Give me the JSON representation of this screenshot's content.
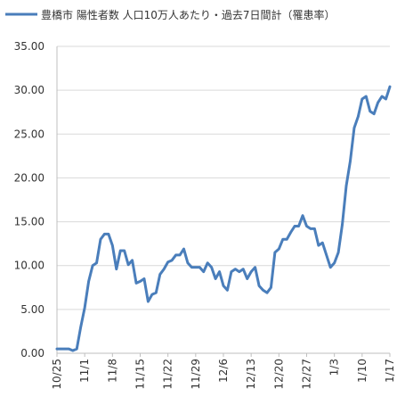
{
  "chart_data": {
    "type": "line",
    "series": [
      {
        "name": "豊橋市 陽性者数 人口10万人あたり・過去7日間計（罹患率）",
        "color": "#4a7ebb",
        "x": [
          "10/25",
          "10/26",
          "10/27",
          "10/28",
          "10/29",
          "10/30",
          "10/31",
          "11/1",
          "11/2",
          "11/3",
          "11/4",
          "11/5",
          "11/6",
          "11/7",
          "11/8",
          "11/9",
          "11/10",
          "11/11",
          "11/12",
          "11/13",
          "11/14",
          "11/15",
          "11/16",
          "11/17",
          "11/18",
          "11/19",
          "11/20",
          "11/21",
          "11/22",
          "11/23",
          "11/24",
          "11/25",
          "11/26",
          "11/27",
          "11/28",
          "11/29",
          "11/30",
          "12/1",
          "12/2",
          "12/3",
          "12/4",
          "12/5",
          "12/6",
          "12/7",
          "12/8",
          "12/9",
          "12/10",
          "12/11",
          "12/12",
          "12/13",
          "12/14",
          "12/15",
          "12/16",
          "12/17",
          "12/18",
          "12/19",
          "12/20",
          "12/21",
          "12/22",
          "12/23",
          "12/24",
          "12/25",
          "12/26",
          "12/27",
          "12/28",
          "12/29",
          "12/30",
          "12/31",
          "1/1",
          "1/2",
          "1/3",
          "1/4",
          "1/5",
          "1/6",
          "1/7",
          "1/8",
          "1/9",
          "1/10",
          "1/11",
          "1/12",
          "1/13",
          "1/14",
          "1/15",
          "1/16",
          "1/17"
        ],
        "values": [
          0.5,
          0.5,
          0.5,
          0.5,
          0.3,
          0.5,
          3.0,
          5.2,
          8.2,
          10.0,
          10.3,
          13.0,
          13.6,
          13.6,
          12.3,
          9.6,
          11.7,
          11.7,
          10.1,
          10.6,
          8.0,
          8.2,
          8.5,
          5.9,
          6.7,
          6.9,
          9.0,
          9.6,
          10.4,
          10.6,
          11.2,
          11.2,
          11.9,
          10.3,
          9.8,
          9.8,
          9.8,
          9.3,
          10.3,
          9.8,
          8.5,
          9.3,
          7.7,
          7.2,
          9.3,
          9.6,
          9.3,
          9.6,
          8.5,
          9.3,
          9.8,
          7.7,
          7.2,
          6.9,
          7.5,
          11.5,
          11.9,
          13.0,
          13.0,
          13.8,
          14.5,
          14.5,
          15.7,
          14.5,
          14.2,
          14.2,
          12.3,
          12.6,
          11.2,
          9.8,
          10.3,
          11.5,
          14.7,
          19.1,
          21.9,
          25.7,
          27.0,
          29.0,
          29.3,
          27.6,
          27.3,
          28.6,
          29.3,
          29.0,
          30.4
        ]
      }
    ],
    "xticks": [
      "10/25",
      "11/1",
      "11/8",
      "11/15",
      "11/22",
      "11/29",
      "12/6",
      "12/13",
      "12/20",
      "12/27",
      "1/3",
      "1/10",
      "1/17"
    ],
    "yticks": [
      "0.00",
      "5.00",
      "10.00",
      "15.00",
      "20.00",
      "25.00",
      "30.00",
      "35.00"
    ],
    "ylim": [
      0,
      35
    ],
    "grid": "horizontal",
    "legend_position": "top-left"
  }
}
